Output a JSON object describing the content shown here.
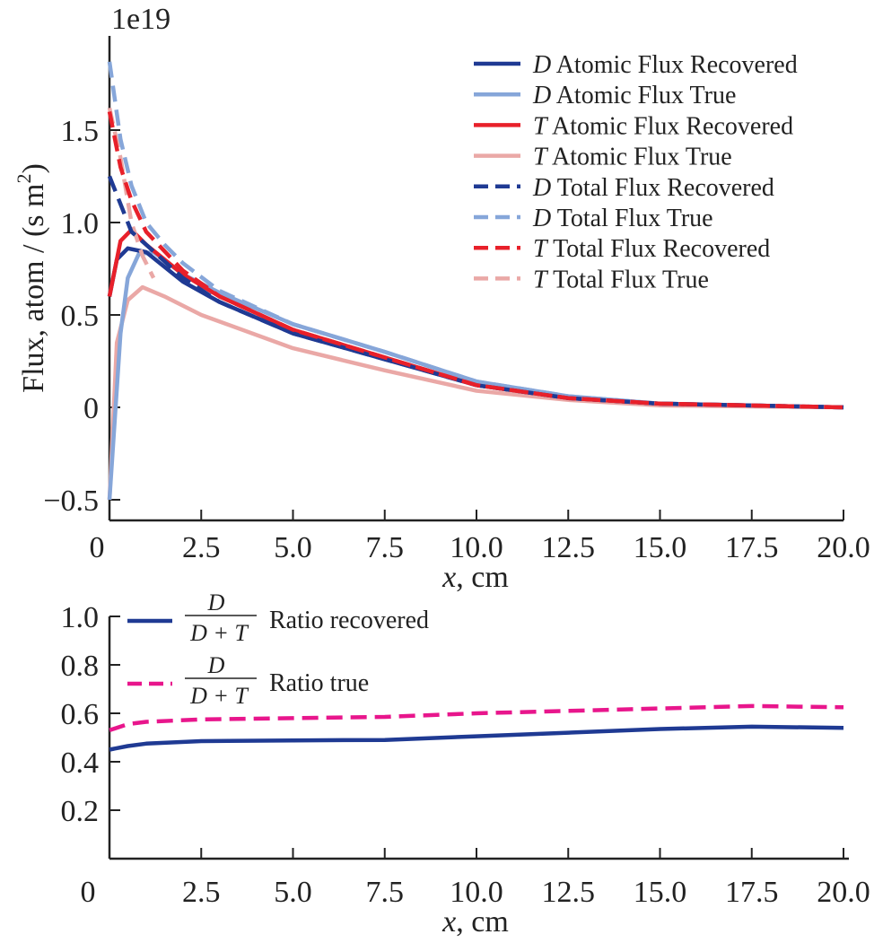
{
  "chart_data": [
    {
      "type": "line",
      "multiplier_label": "1e19",
      "xlabel_var": "x",
      "xlabel_unit": ", cm",
      "ylabel": "Flux, atom / (s m",
      "ylabel_sup": "2",
      "ylabel_end": ")",
      "xlim": [
        0,
        20
      ],
      "ylim": [
        -0.62,
        2.0
      ],
      "xticks": [
        0,
        2.5,
        5,
        7.5,
        10,
        12.5,
        15,
        17.5,
        20
      ],
      "xtick_labels": [
        "0",
        "2.5",
        "5.0",
        "7.5",
        "10.0",
        "12.5",
        "15.0",
        "17.5",
        "20.0"
      ],
      "yticks": [
        -0.5,
        0,
        0.5,
        1.0,
        1.5
      ],
      "ytick_labels": [
        "−0.5",
        "0",
        "0.5",
        "1.0",
        "1.5"
      ],
      "grid": false,
      "legend_position": "top-right",
      "series": [
        {
          "species": "D",
          "name": "Atomic Flux Recovered",
          "color": "#1f3a93",
          "dash": false,
          "x": [
            0,
            0.2,
            0.5,
            1,
            2,
            3,
            5,
            7.5,
            10,
            12.5,
            15,
            17.5,
            20
          ],
          "y": [
            0.6,
            0.8,
            0.86,
            0.84,
            0.68,
            0.57,
            0.4,
            0.26,
            0.12,
            0.05,
            0.02,
            0.01,
            0
          ]
        },
        {
          "species": "D",
          "name": "Atomic Flux True",
          "color": "#86a6d9",
          "dash": false,
          "x": [
            0,
            0.3,
            0.5,
            0.8,
            1.2,
            2,
            3,
            5,
            6.5,
            7.5,
            10,
            12.5,
            15,
            17.5,
            20
          ],
          "y": [
            -0.5,
            0.4,
            0.7,
            0.83,
            0.84,
            0.72,
            0.62,
            0.45,
            0.36,
            0.3,
            0.14,
            0.06,
            0.02,
            0.01,
            0
          ]
        },
        {
          "species": "T",
          "name": "Atomic Flux Recovered",
          "color": "#e8202a",
          "dash": false,
          "x": [
            0,
            0.3,
            0.6,
            1,
            2,
            3,
            5,
            7.5,
            10,
            12.5,
            15,
            17.5,
            20
          ],
          "y": [
            0.6,
            0.9,
            0.96,
            0.88,
            0.72,
            0.6,
            0.42,
            0.27,
            0.12,
            0.05,
            0.02,
            0.01,
            0
          ]
        },
        {
          "species": "T",
          "name": "Atomic Flux True",
          "color": "#eaa8a6",
          "dash": false,
          "x": [
            0,
            0.2,
            0.5,
            0.9,
            1.5,
            2.5,
            5,
            7.5,
            10,
            12.5,
            15,
            17.5,
            20
          ],
          "y": [
            -0.5,
            0.35,
            0.58,
            0.65,
            0.6,
            0.5,
            0.32,
            0.2,
            0.09,
            0.04,
            0.01,
            0.005,
            0
          ]
        },
        {
          "species": "D",
          "name": "Total Flux Recovered",
          "color": "#1f3a93",
          "dash": true,
          "x": [
            0,
            0.3,
            0.6,
            1,
            2,
            3,
            5,
            7.5,
            10,
            12.5,
            15,
            17.5,
            20
          ],
          "y": [
            1.25,
            1.1,
            0.95,
            0.88,
            0.7,
            0.57,
            0.4,
            0.26,
            0.12,
            0.05,
            0.02,
            0.01,
            0
          ]
        },
        {
          "species": "D",
          "name": "Total Flux True",
          "color": "#86a6d9",
          "dash": true,
          "x": [
            0,
            0.3,
            0.6,
            1,
            1.5,
            2,
            3,
            5,
            7.5,
            10,
            12.5,
            15,
            17.5,
            20
          ],
          "y": [
            1.87,
            1.45,
            1.2,
            1.0,
            0.88,
            0.78,
            0.63,
            0.45,
            0.3,
            0.14,
            0.06,
            0.02,
            0.01,
            0
          ]
        },
        {
          "species": "T",
          "name": "Total Flux Recovered",
          "color": "#e8202a",
          "dash": true,
          "x": [
            0,
            0.3,
            0.6,
            1,
            2,
            3,
            5,
            7.5,
            10,
            12.5,
            15,
            17.5,
            20
          ],
          "y": [
            1.6,
            1.3,
            1.12,
            0.95,
            0.74,
            0.6,
            0.42,
            0.27,
            0.12,
            0.05,
            0.02,
            0.01,
            0
          ]
        },
        {
          "species": "T",
          "name": "Total Flux True",
          "color": "#eaa8a6",
          "dash": true,
          "x": [
            0,
            0.3,
            0.6,
            0.9,
            1.2
          ],
          "y": [
            1.62,
            1.35,
            1.0,
            0.82,
            0.7
          ]
        }
      ]
    },
    {
      "type": "line",
      "xlabel_var": "x",
      "xlabel_unit": ", cm",
      "xlim": [
        0,
        20
      ],
      "ylim": [
        0,
        1.0
      ],
      "xticks": [
        0,
        2.5,
        5,
        7.5,
        10,
        12.5,
        15,
        17.5,
        20
      ],
      "xtick_labels": [
        "0",
        "2.5",
        "5.0",
        "7.5",
        "10.0",
        "12.5",
        "15.0",
        "17.5",
        "20.0"
      ],
      "yticks": [
        0.2,
        0.4,
        0.6,
        0.8,
        1.0
      ],
      "ytick_labels": [
        "0.2",
        "0.4",
        "0.6",
        "0.8",
        "1.0"
      ],
      "grid": false,
      "legend_position": "top-left",
      "legend_fraction": {
        "numerator": "D",
        "denominator": "D + T"
      },
      "series": [
        {
          "name": "Ratio recovered",
          "color": "#1f3a93",
          "dash": false,
          "x": [
            0,
            0.5,
            1,
            2.5,
            5,
            7.5,
            10,
            12.5,
            15,
            17.5,
            20
          ],
          "y": [
            0.45,
            0.465,
            0.475,
            0.485,
            0.488,
            0.49,
            0.505,
            0.52,
            0.535,
            0.545,
            0.54
          ]
        },
        {
          "name": "Ratio true",
          "color": "#e8168c",
          "dash": true,
          "x": [
            0,
            0.5,
            1,
            2.5,
            5,
            7.5,
            10,
            12.5,
            15,
            17.5,
            20
          ],
          "y": [
            0.53,
            0.555,
            0.565,
            0.575,
            0.58,
            0.585,
            0.6,
            0.61,
            0.62,
            0.63,
            0.625
          ]
        }
      ]
    }
  ]
}
